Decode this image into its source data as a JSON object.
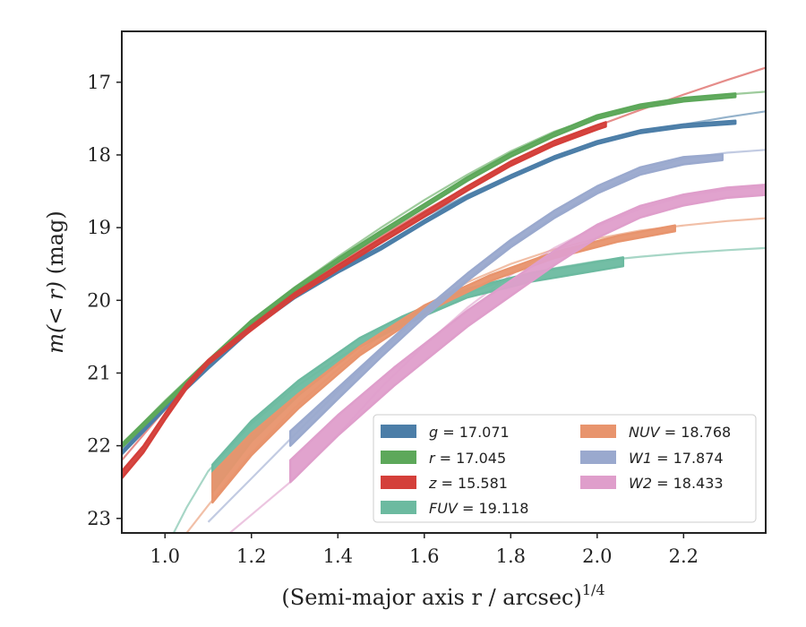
{
  "chart_data": {
    "type": "line",
    "xlabel": "(Semi-major axis r / arcsec)",
    "xlabel_superscript": "1/4",
    "ylabel_math": "m(< r)",
    "ylabel_unit": "(mag)",
    "xlim": [
      0.9,
      2.39
    ],
    "ylim": [
      23.2,
      16.3
    ],
    "y_inverted": true,
    "grid": false,
    "legend_position": "lower-right",
    "xticks": [
      1.0,
      1.2,
      1.4,
      1.6,
      1.8,
      2.0,
      2.2
    ],
    "xtick_labels": [
      "1.0",
      "1.2",
      "1.4",
      "1.6",
      "1.8",
      "2.0",
      "2.2"
    ],
    "yticks": [
      17,
      18,
      19,
      20,
      21,
      22,
      23
    ],
    "ytick_labels": [
      "17",
      "18",
      "19",
      "20",
      "21",
      "22",
      "23"
    ],
    "series": [
      {
        "band": "g",
        "band_italic": true,
        "value_text": "= 17.071",
        "color": "#4c7ea8",
        "model_x": [
          0.9,
          1.0,
          1.1,
          1.2,
          1.3,
          1.4,
          1.5,
          1.6,
          1.7,
          1.8,
          1.9,
          2.0,
          2.1,
          2.2,
          2.3,
          2.39
        ],
        "model_y": [
          22.05,
          21.45,
          20.9,
          20.35,
          19.92,
          19.55,
          19.2,
          18.85,
          18.55,
          18.28,
          18.05,
          17.85,
          17.7,
          17.58,
          17.48,
          17.4
        ],
        "obs_x": [
          0.9,
          1.0,
          1.1,
          1.2,
          1.3,
          1.4,
          1.5,
          1.6,
          1.7,
          1.8,
          1.9,
          2.0,
          2.1,
          2.2,
          2.32
        ],
        "obs_y": [
          22.1,
          21.48,
          20.92,
          20.38,
          19.95,
          19.6,
          19.28,
          18.92,
          18.58,
          18.3,
          18.04,
          17.83,
          17.68,
          17.6,
          17.55
        ],
        "obs_width": [
          0.04,
          0.04,
          0.04,
          0.04,
          0.04,
          0.04,
          0.04,
          0.04,
          0.04,
          0.04,
          0.04,
          0.04,
          0.04,
          0.04,
          0.04
        ]
      },
      {
        "band": "r",
        "band_italic": true,
        "value_text": "= 17.045",
        "color": "#5da85a",
        "model_x": [
          0.9,
          1.0,
          1.1,
          1.2,
          1.3,
          1.4,
          1.5,
          1.6,
          1.7,
          1.8,
          1.9,
          2.0,
          2.1,
          2.2,
          2.3,
          2.39
        ],
        "model_y": [
          21.98,
          21.38,
          20.82,
          20.28,
          19.82,
          19.4,
          19.0,
          18.62,
          18.27,
          17.95,
          17.68,
          17.48,
          17.33,
          17.23,
          17.17,
          17.13
        ],
        "obs_x": [
          0.9,
          1.0,
          1.1,
          1.2,
          1.3,
          1.4,
          1.5,
          1.6,
          1.7,
          1.8,
          1.9,
          2.0,
          2.1,
          2.2,
          2.32
        ],
        "obs_y": [
          22.0,
          21.42,
          20.85,
          20.3,
          19.85,
          19.45,
          19.07,
          18.7,
          18.33,
          18.0,
          17.72,
          17.48,
          17.33,
          17.24,
          17.18
        ],
        "obs_width": [
          0.05,
          0.05,
          0.05,
          0.05,
          0.05,
          0.05,
          0.05,
          0.05,
          0.05,
          0.05,
          0.05,
          0.05,
          0.05,
          0.05,
          0.05
        ]
      },
      {
        "band": "z",
        "band_italic": true,
        "value_text": "= 15.581",
        "color": "#d43f3a",
        "model_x": [
          0.9,
          1.0,
          1.1,
          1.2,
          1.3,
          1.4,
          1.5,
          1.6,
          1.7,
          1.8,
          1.9,
          2.0,
          2.1,
          2.2,
          2.3,
          2.39
        ],
        "model_y": [
          22.2,
          21.5,
          20.88,
          20.35,
          19.9,
          19.5,
          19.12,
          18.77,
          18.44,
          18.13,
          17.85,
          17.6,
          17.38,
          17.17,
          16.97,
          16.8
        ],
        "obs_x": [
          0.9,
          0.95,
          1.0,
          1.05,
          1.1,
          1.2,
          1.3,
          1.4,
          1.5,
          1.6,
          1.7,
          1.8,
          1.9,
          2.0,
          2.02
        ],
        "obs_y": [
          22.4,
          22.05,
          21.6,
          21.18,
          20.85,
          20.38,
          19.93,
          19.55,
          19.18,
          18.82,
          18.46,
          18.12,
          17.84,
          17.62,
          17.58
        ],
        "obs_width": [
          0.1,
          0.09,
          0.08,
          0.07,
          0.06,
          0.06,
          0.06,
          0.06,
          0.06,
          0.06,
          0.06,
          0.06,
          0.06,
          0.06,
          0.06
        ]
      },
      {
        "band": "FUV",
        "band_italic": true,
        "value_text": "= 19.118",
        "color": "#6cbaa0",
        "model_x": [
          1.02,
          1.05,
          1.1,
          1.2,
          1.3,
          1.4,
          1.5,
          1.6,
          1.7,
          1.8,
          1.9,
          2.0,
          2.1,
          2.2,
          2.3,
          2.39
        ],
        "model_y": [
          23.2,
          22.85,
          22.35,
          21.7,
          21.2,
          20.8,
          20.45,
          20.15,
          19.9,
          19.7,
          19.56,
          19.46,
          19.4,
          19.35,
          19.31,
          19.28
        ],
        "obs_x": [
          1.11,
          1.2,
          1.31,
          1.45,
          1.55,
          1.7,
          1.85,
          2.06
        ],
        "obs_y": [
          22.45,
          21.8,
          21.2,
          20.58,
          20.28,
          19.9,
          19.68,
          19.47
        ],
        "obs_width": [
          0.38,
          0.28,
          0.2,
          0.12,
          0.12,
          0.12,
          0.12,
          0.12
        ]
      },
      {
        "band": "NUV",
        "band_italic": true,
        "value_text": "= 18.768",
        "color": "#e8946d",
        "model_x": [
          1.05,
          1.1,
          1.2,
          1.3,
          1.4,
          1.5,
          1.6,
          1.7,
          1.8,
          1.9,
          2.0,
          2.1,
          2.2,
          2.3,
          2.39
        ],
        "model_y": [
          23.2,
          22.82,
          22.1,
          21.48,
          20.95,
          20.48,
          20.08,
          19.75,
          19.5,
          19.3,
          19.15,
          19.04,
          18.97,
          18.91,
          18.87
        ],
        "obs_x": [
          1.11,
          1.2,
          1.31,
          1.45,
          1.6,
          1.75,
          1.9,
          2.05,
          2.18
        ],
        "obs_y": [
          22.58,
          21.98,
          21.38,
          20.7,
          20.12,
          19.7,
          19.38,
          19.15,
          19.01
        ],
        "obs_width": [
          0.4,
          0.3,
          0.2,
          0.12,
          0.1,
          0.08,
          0.08,
          0.08,
          0.08
        ]
      },
      {
        "band": "W1",
        "band_italic": true,
        "value_text": "= 17.874",
        "color": "#9aa9ce",
        "model_x": [
          1.1,
          1.2,
          1.3,
          1.4,
          1.5,
          1.6,
          1.7,
          1.8,
          1.9,
          2.0,
          2.1,
          2.2,
          2.3,
          2.39
        ],
        "model_y": [
          23.05,
          22.45,
          21.85,
          21.25,
          20.7,
          20.18,
          19.7,
          19.25,
          18.85,
          18.5,
          18.23,
          18.05,
          17.97,
          17.93
        ],
        "obs_x": [
          1.29,
          1.4,
          1.5,
          1.6,
          1.7,
          1.8,
          1.9,
          2.0,
          2.1,
          2.2,
          2.29
        ],
        "obs_y": [
          21.9,
          21.28,
          20.72,
          20.18,
          19.68,
          19.22,
          18.82,
          18.48,
          18.22,
          18.08,
          18.03
        ],
        "obs_width": [
          0.2,
          0.15,
          0.12,
          0.1,
          0.1,
          0.1,
          0.1,
          0.1,
          0.1,
          0.1,
          0.08
        ]
      },
      {
        "band": "W2",
        "band_italic": true,
        "value_text": "= 18.433",
        "color": "#df9ecb",
        "model_x": [
          1.15,
          1.2,
          1.3,
          1.4,
          1.5,
          1.6,
          1.7,
          1.8,
          1.9,
          2.0,
          2.1,
          2.2,
          2.3,
          2.39
        ],
        "model_y": [
          23.2,
          22.95,
          22.45,
          21.85,
          21.2,
          20.62,
          20.1,
          19.65,
          19.28,
          18.98,
          18.74,
          18.57,
          18.48,
          18.44
        ],
        "obs_x": [
          1.29,
          1.4,
          1.53,
          1.7,
          1.9,
          2.0,
          2.1,
          2.2,
          2.3,
          2.39
        ],
        "obs_y": [
          22.35,
          21.72,
          21.05,
          20.25,
          19.42,
          19.05,
          18.78,
          18.62,
          18.52,
          18.48
        ],
        "obs_width": [
          0.3,
          0.28,
          0.25,
          0.22,
          0.2,
          0.18,
          0.16,
          0.15,
          0.14,
          0.14
        ]
      }
    ],
    "legend_columns": [
      [
        "g",
        "r",
        "z",
        "FUV"
      ],
      [
        "NUV",
        "W1",
        "W2"
      ]
    ]
  }
}
